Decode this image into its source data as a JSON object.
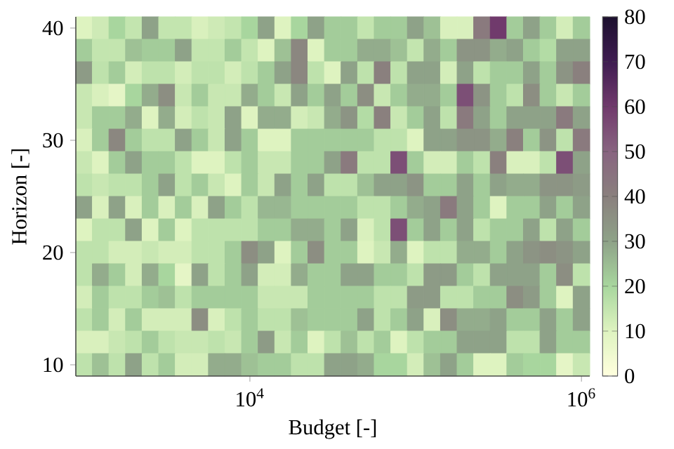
{
  "chart_data": {
    "type": "heatmap",
    "xlabel": "Budget [-]",
    "ylabel": "Horizon [-]",
    "categories": [
      null,
      null,
      null,
      null,
      null,
      null,
      null,
      null,
      null,
      null,
      "10$^{4}$",
      null,
      null,
      null,
      null,
      null,
      null,
      null,
      null,
      null,
      null,
      null,
      null,
      null,
      null,
      null,
      null,
      null,
      null,
      null,
      "10$^{6}$"
    ],
    "y_categories": [
      "40",
      null,
      null,
      null,
      null,
      "30",
      null,
      null,
      null,
      null,
      "20",
      null,
      null,
      null,
      null,
      "10"
    ],
    "clim": [
      0,
      80
    ],
    "cticks": [
      0,
      10,
      20,
      30,
      40,
      50,
      60,
      70,
      80
    ],
    "cells": [
      [
        10,
        13,
        20,
        15,
        30,
        15,
        15,
        11,
        13,
        15,
        20,
        30,
        10,
        20,
        30,
        22,
        22,
        15,
        22,
        22,
        30,
        24,
        11,
        11,
        42,
        60,
        22,
        30,
        22,
        12,
        22
      ],
      [
        22,
        15,
        15,
        24,
        22,
        22,
        30,
        15,
        15,
        22,
        15,
        10,
        24,
        38,
        10,
        22,
        22,
        28,
        28,
        24,
        15,
        28,
        22,
        34,
        34,
        28,
        30,
        22,
        18,
        30,
        30
      ],
      [
        32,
        16,
        22,
        12,
        16,
        16,
        12,
        16,
        16,
        12,
        16,
        22,
        30,
        38,
        16,
        10,
        30,
        16,
        40,
        16,
        30,
        30,
        12,
        30,
        16,
        22,
        22,
        30,
        22,
        34,
        40
      ],
      [
        14,
        11,
        8,
        20,
        28,
        36,
        14,
        22,
        14,
        14,
        28,
        22,
        14,
        30,
        22,
        30,
        22,
        36,
        14,
        22,
        28,
        28,
        22,
        55,
        34,
        22,
        16,
        36,
        22,
        14,
        22
      ],
      [
        14,
        22,
        22,
        28,
        10,
        28,
        12,
        16,
        14,
        30,
        10,
        28,
        28,
        12,
        14,
        28,
        34,
        18,
        40,
        14,
        22,
        30,
        16,
        42,
        30,
        22,
        30,
        30,
        30,
        42,
        30
      ],
      [
        11,
        22,
        38,
        22,
        16,
        16,
        30,
        22,
        14,
        30,
        22,
        10,
        10,
        22,
        22,
        22,
        22,
        22,
        16,
        16,
        10,
        30,
        30,
        34,
        34,
        28,
        40,
        22,
        34,
        16,
        42
      ],
      [
        14,
        10,
        22,
        30,
        22,
        22,
        16,
        10,
        10,
        16,
        22,
        14,
        14,
        22,
        22,
        30,
        42,
        16,
        16,
        55,
        22,
        12,
        12,
        22,
        16,
        40,
        11,
        11,
        16,
        55,
        30
      ],
      [
        16,
        14,
        16,
        16,
        22,
        30,
        16,
        22,
        14,
        10,
        22,
        14,
        30,
        22,
        30,
        16,
        16,
        24,
        30,
        30,
        34,
        22,
        22,
        30,
        22,
        30,
        28,
        28,
        34,
        34,
        32
      ],
      [
        30,
        11,
        30,
        11,
        22,
        11,
        22,
        11,
        30,
        22,
        16,
        26,
        26,
        22,
        22,
        22,
        22,
        16,
        16,
        22,
        28,
        30,
        42,
        30,
        22,
        10,
        22,
        22,
        30,
        22,
        30
      ],
      [
        10,
        16,
        16,
        30,
        10,
        22,
        10,
        16,
        16,
        16,
        16,
        22,
        22,
        28,
        28,
        22,
        30,
        11,
        16,
        55,
        22,
        30,
        22,
        30,
        16,
        22,
        22,
        30,
        16,
        30,
        22
      ],
      [
        16,
        16,
        12,
        12,
        14,
        12,
        12,
        16,
        16,
        22,
        36,
        30,
        10,
        22,
        36,
        22,
        22,
        10,
        14,
        28,
        10,
        16,
        16,
        28,
        28,
        22,
        30,
        34,
        36,
        34,
        30
      ],
      [
        16,
        28,
        22,
        12,
        28,
        20,
        8,
        30,
        16,
        22,
        30,
        12,
        12,
        28,
        22,
        22,
        30,
        30,
        22,
        22,
        16,
        32,
        32,
        22,
        16,
        30,
        30,
        30,
        22,
        36,
        16
      ],
      [
        12,
        22,
        16,
        16,
        22,
        24,
        16,
        22,
        22,
        22,
        22,
        14,
        14,
        14,
        22,
        22,
        22,
        22,
        16,
        16,
        32,
        32,
        16,
        16,
        22,
        22,
        36,
        32,
        22,
        10,
        30
      ],
      [
        16,
        22,
        12,
        22,
        12,
        12,
        12,
        36,
        11,
        16,
        22,
        16,
        16,
        24,
        22,
        22,
        22,
        30,
        16,
        22,
        30,
        11,
        36,
        28,
        28,
        30,
        22,
        22,
        30,
        22,
        30
      ],
      [
        11,
        11,
        14,
        16,
        22,
        16,
        14,
        14,
        16,
        14,
        22,
        32,
        14,
        22,
        10,
        16,
        24,
        16,
        22,
        10,
        16,
        22,
        22,
        30,
        30,
        30,
        16,
        16,
        30,
        22,
        22
      ],
      [
        16,
        24,
        16,
        30,
        16,
        22,
        12,
        12,
        28,
        28,
        24,
        22,
        22,
        16,
        16,
        30,
        30,
        28,
        20,
        20,
        12,
        24,
        30,
        22,
        10,
        10,
        22,
        20,
        20,
        8,
        14
      ]
    ]
  }
}
